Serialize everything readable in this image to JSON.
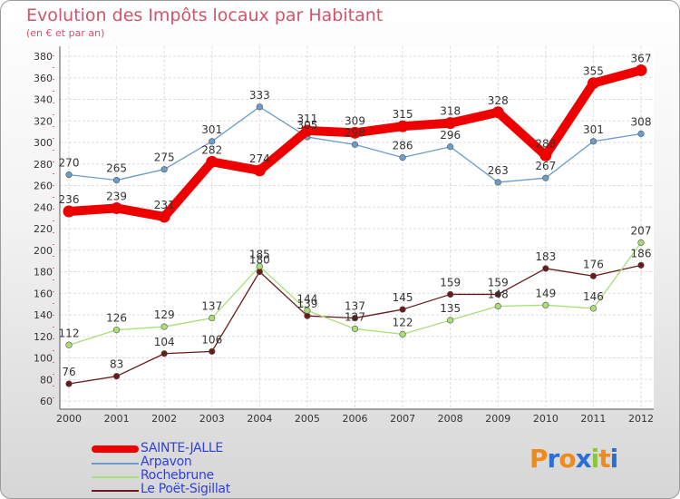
{
  "title": "Evolution des Impôts locaux par Habitant",
  "subtitle": "(en € et par an)",
  "logo": {
    "letters": [
      "P",
      "r",
      "o",
      "x",
      "i",
      "t",
      "i"
    ],
    "colors": [
      "#f08a1a",
      "#2b6fd6",
      "#f08a1a",
      "#2b6fd6",
      "#8cc63f",
      "#f08a1a",
      "#2b6fd6"
    ]
  },
  "chart_data": {
    "type": "line",
    "x": [
      "2000",
      "2001",
      "2002",
      "2003",
      "2004",
      "2005",
      "2006",
      "2007",
      "2008",
      "2009",
      "2010",
      "2011",
      "2012"
    ],
    "ylim": [
      60,
      380
    ],
    "yticks": [
      60,
      80,
      100,
      120,
      140,
      160,
      180,
      200,
      220,
      240,
      260,
      280,
      300,
      320,
      340,
      360,
      380
    ],
    "grid": true,
    "legend_position": "bottom-left",
    "series": [
      {
        "name": "SAINTE-JALLE",
        "color": "#ee0000",
        "values": [
          236,
          239,
          231,
          282,
          274,
          311,
          309,
          315,
          318,
          328,
          288,
          355,
          367
        ]
      },
      {
        "name": "Arpavon",
        "color": "#6a9ccc",
        "values": [
          270,
          265,
          275,
          301,
          333,
          305,
          298,
          286,
          296,
          263,
          267,
          301,
          308
        ]
      },
      {
        "name": "Rochebrune",
        "color": "#a8df78",
        "values": [
          112,
          126,
          129,
          137,
          185,
          144,
          127,
          122,
          135,
          148,
          149,
          146,
          207
        ]
      },
      {
        "name": "Le Poët-Sigillat",
        "color": "#6b1a1a",
        "values": [
          76,
          83,
          104,
          106,
          180,
          139,
          137,
          145,
          159,
          159,
          183,
          176,
          186
        ]
      }
    ]
  }
}
